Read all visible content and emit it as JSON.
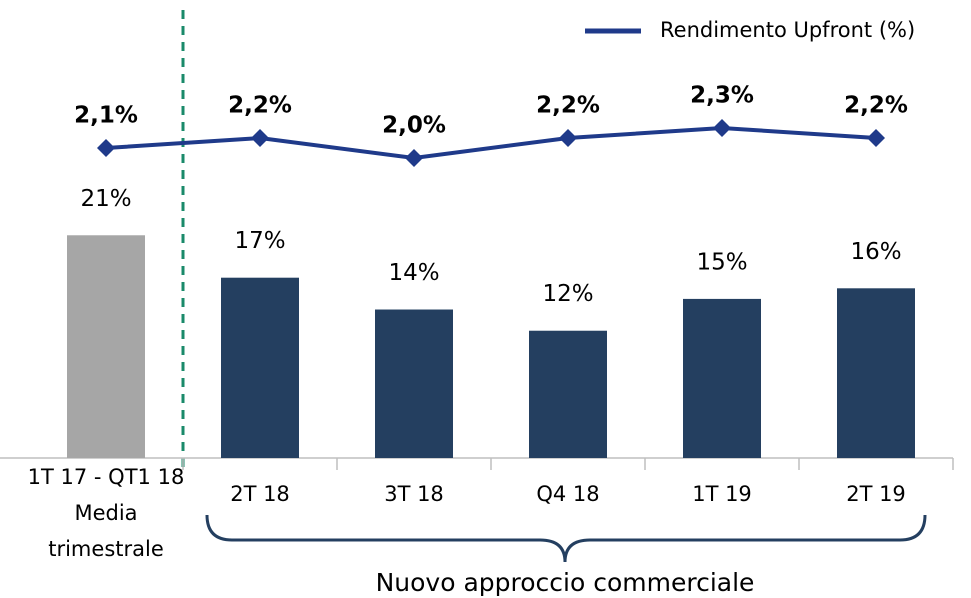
{
  "chart_data": {
    "type": "bar",
    "categories": [
      "1T 17 - QT1 18\nMedia\ntrimestrale",
      "2T 18",
      "3T 18",
      "Q4 18",
      "1T 19",
      "2T 19"
    ],
    "values": [
      21,
      17,
      14,
      12,
      15,
      16
    ],
    "value_labels": [
      "21%",
      "17%",
      "14%",
      "12%",
      "15%",
      "16%"
    ],
    "colors": [
      "#a6a6a6",
      "#243f60",
      "#243f60",
      "#243f60",
      "#243f60",
      "#243f60"
    ],
    "ylim": [
      0,
      33
    ],
    "series": [
      {
        "name": "Rendimento Upfront (%)",
        "type": "line",
        "axis": "y2",
        "color": "#1f3a8a",
        "values": [
          2.1,
          2.2,
          2.0,
          2.2,
          2.3,
          2.2
        ],
        "value_labels": [
          "2,1%",
          "2,2%",
          "2,0%",
          "2,2%",
          "2,3%",
          "2,2%"
        ]
      }
    ],
    "y2lim": [
      -1,
      2.5
    ],
    "legend": "top-right",
    "annotations": [
      "Nuovo approccio commerciale"
    ]
  }
}
